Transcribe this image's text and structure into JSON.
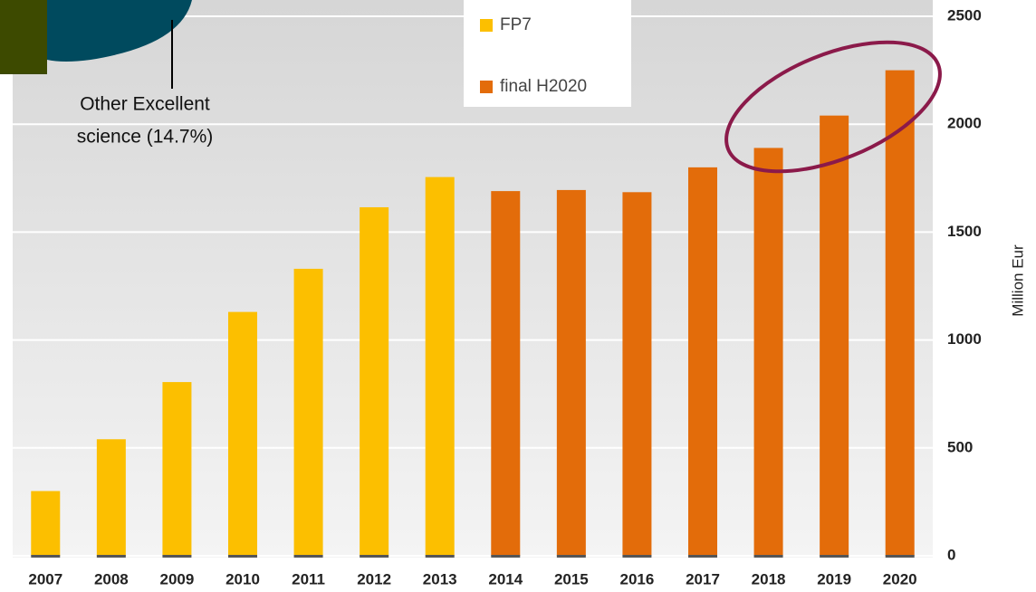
{
  "chart_data": {
    "type": "bar",
    "annotation_lines": [
      "Other Excellent",
      "science (14.7%)"
    ],
    "y_label": "Million Eur",
    "categories": [
      "2007",
      "2008",
      "2009",
      "2010",
      "2011",
      "2012",
      "2013",
      "2014",
      "2015",
      "2016",
      "2017",
      "2018",
      "2019",
      "2020"
    ],
    "series": [
      {
        "name": "FP7",
        "color": "#fcbf00",
        "values": [
          300,
          540,
          805,
          1130,
          1330,
          1615,
          1755,
          null,
          null,
          null,
          null,
          null,
          null,
          null
        ]
      },
      {
        "name": "final H2020",
        "color": "#e36c0a",
        "values": [
          null,
          null,
          null,
          null,
          null,
          null,
          null,
          1690,
          1695,
          1685,
          1800,
          1890,
          2040,
          2250
        ]
      }
    ],
    "ylim": [
      0,
      2500
    ],
    "yticks": [
      0,
      500,
      1000,
      1500,
      2000,
      2500
    ],
    "grid": true
  }
}
